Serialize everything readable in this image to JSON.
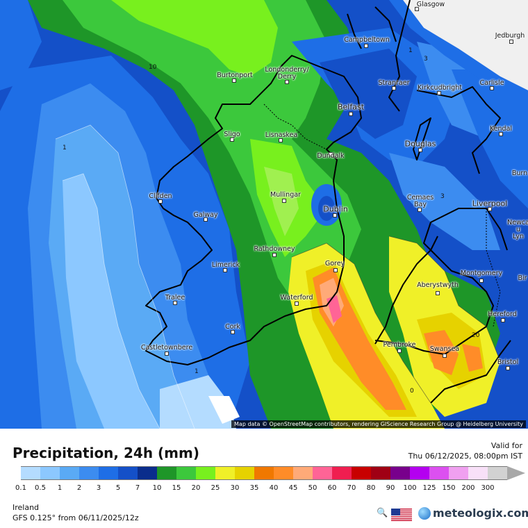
{
  "map": {
    "attribution": "Map data © OpenStreetMap contributors, rendering GIScience Research Group @ Heidelberg University",
    "cities": [
      {
        "name": "Glasgow"
      },
      {
        "name": "Jedburgh"
      },
      {
        "name": "Campbeltown"
      },
      {
        "name": "Londonderry/\nDerry"
      },
      {
        "name": "Burtonport"
      },
      {
        "name": "Stranraer"
      },
      {
        "name": "Kirkcudbright"
      },
      {
        "name": "Carlisle"
      },
      {
        "name": "Belfast"
      },
      {
        "name": "Sligo"
      },
      {
        "name": "Lisnaskea"
      },
      {
        "name": "Douglas"
      },
      {
        "name": "Kendal"
      },
      {
        "name": "Dundalk"
      },
      {
        "name": "Burn"
      },
      {
        "name": "Clifden"
      },
      {
        "name": "Mullingar"
      },
      {
        "name": "Cemaes\nBay"
      },
      {
        "name": "Liverpool"
      },
      {
        "name": "Galway"
      },
      {
        "name": "Dublin"
      },
      {
        "name": "Newca\nu\nLyn"
      },
      {
        "name": "Rathdowney"
      },
      {
        "name": "Limerick"
      },
      {
        "name": "Gorey"
      },
      {
        "name": "Montgomery"
      },
      {
        "name": "Aberystwyth"
      },
      {
        "name": "Bir"
      },
      {
        "name": "Tralee"
      },
      {
        "name": "Waterford"
      },
      {
        "name": "Hereford"
      },
      {
        "name": "Cork"
      },
      {
        "name": "Pembroke"
      },
      {
        "name": "Swansea"
      },
      {
        "name": "Castletownbere"
      },
      {
        "name": "Bristol"
      }
    ],
    "contour_labels": [
      "10",
      "1",
      "1",
      "3",
      "3",
      "20",
      "0",
      "1"
    ]
  },
  "legend": {
    "title": "Precipitation, 24h (mm)",
    "valid_label": "Valid for",
    "valid_time": "Thu 06/12/2025, 08:00pm IST",
    "region": "Ireland",
    "model": "GFS 0.125° from  06/11/2025/12z",
    "brand": "meteologix.com",
    "hd_icon": "magnifier-hd-icon",
    "flag_icon": "us-flag-icon",
    "scale": [
      {
        "label": "0.1",
        "color": "#b4dcff"
      },
      {
        "label": "0.5",
        "color": "#8cc8ff"
      },
      {
        "label": "1",
        "color": "#5aaaf5"
      },
      {
        "label": "2",
        "color": "#3c8cf0"
      },
      {
        "label": "3",
        "color": "#1e6ee6"
      },
      {
        "label": "5",
        "color": "#1450c8"
      },
      {
        "label": "7",
        "color": "#0a2d8c"
      },
      {
        "label": "10",
        "color": "#1e9628"
      },
      {
        "label": "15",
        "color": "#3cc83c"
      },
      {
        "label": "20",
        "color": "#78f01e"
      },
      {
        "label": "25",
        "color": "#f0f028"
      },
      {
        "label": "30",
        "color": "#e6d200"
      },
      {
        "label": "35",
        "color": "#f07800"
      },
      {
        "label": "40",
        "color": "#ff8c28"
      },
      {
        "label": "45",
        "color": "#ffaa78"
      },
      {
        "label": "50",
        "color": "#ff6496"
      },
      {
        "label": "60",
        "color": "#f01e50"
      },
      {
        "label": "70",
        "color": "#c80000"
      },
      {
        "label": "80",
        "color": "#a00014"
      },
      {
        "label": "90",
        "color": "#78008c"
      },
      {
        "label": "100",
        "color": "#b400f0"
      },
      {
        "label": "125",
        "color": "#dc50f0"
      },
      {
        "label": "150",
        "color": "#f0a0f0"
      },
      {
        "label": "200",
        "color": "#f8e0f8"
      },
      {
        "label": "300",
        "color": "#d2d2d2"
      }
    ]
  }
}
